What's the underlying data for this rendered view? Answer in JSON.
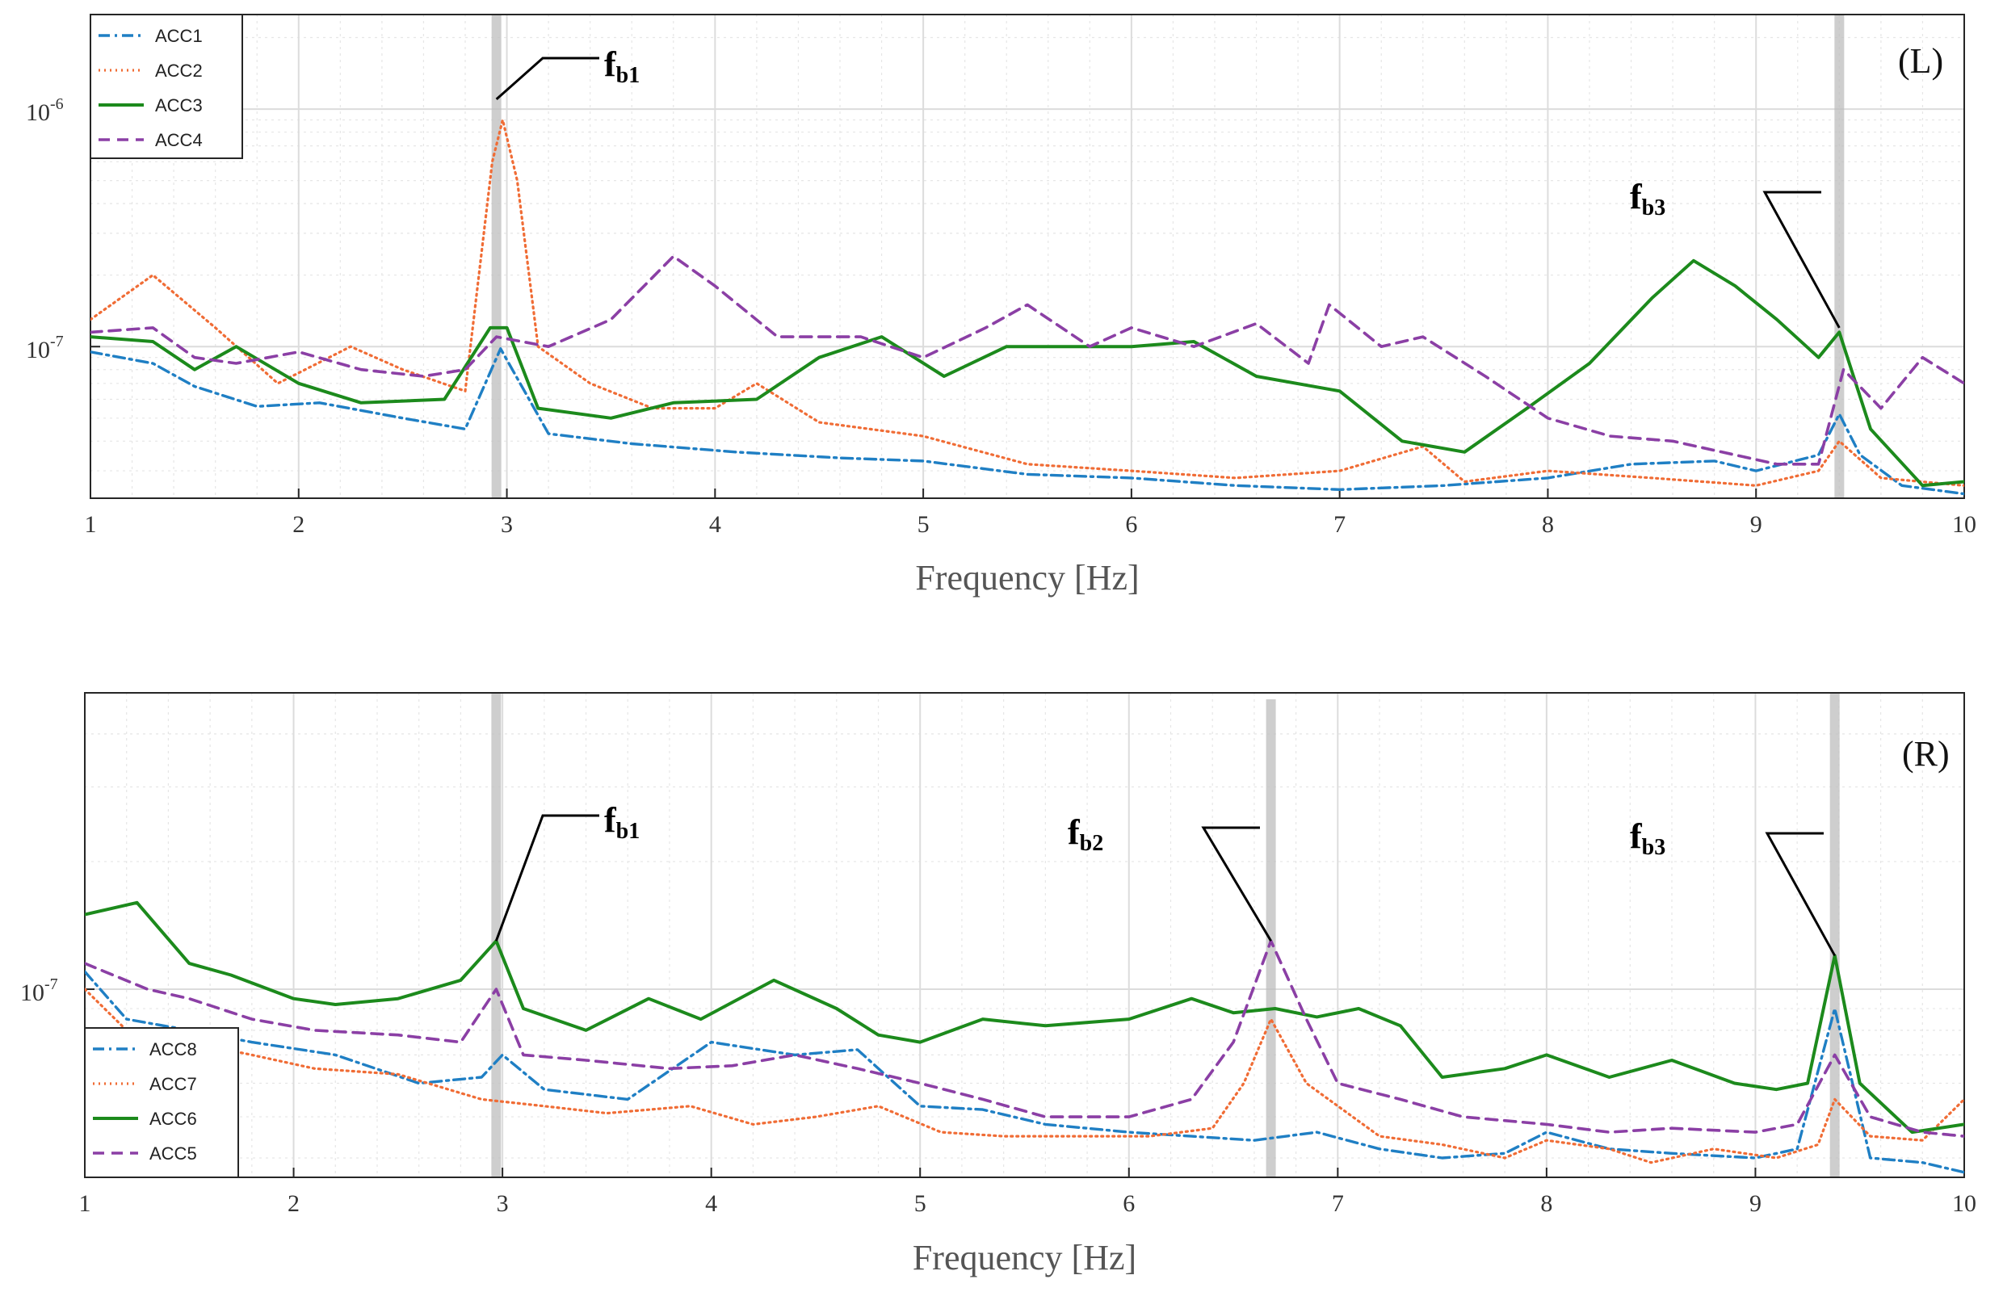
{
  "chart_data": [
    {
      "type": "line",
      "panel_label": "(L)",
      "xlabel": "Frequency [Hz]",
      "ylabel": "",
      "yscale": "log",
      "xlim": [
        1,
        10
      ],
      "ylim": [
        2.3e-08,
        2.5e-06
      ],
      "xticks": [
        "1",
        "2",
        "3",
        "4",
        "5",
        "6",
        "7",
        "8",
        "9",
        "10"
      ],
      "yticks": [
        {
          "base": "10",
          "exp": "-7",
          "value": 1e-07
        },
        {
          "base": "10",
          "exp": "-6",
          "value": 1e-06
        }
      ],
      "grid": true,
      "legend_position": "top-left",
      "highlight_bands": [
        2.95,
        9.4
      ],
      "annotations": [
        {
          "main": "f",
          "sub": "b1",
          "x": 2.95,
          "y": 1.1e-06
        },
        {
          "main": "f",
          "sub": "b3",
          "x": 9.4,
          "y": 1.2e-07
        }
      ],
      "series": [
        {
          "name": "ACC1",
          "color": "#1f7fc4",
          "style": "dashdot",
          "x": [
            1,
            1.3,
            1.5,
            1.8,
            2.1,
            2.5,
            2.8,
            2.97,
            3.2,
            3.6,
            4.1,
            4.6,
            5.0,
            5.5,
            6.0,
            6.5,
            7.0,
            7.5,
            8.0,
            8.4,
            8.8,
            9.0,
            9.3,
            9.4,
            9.5,
            9.7,
            10
          ],
          "values": [
            9.5e-08,
            8.5e-08,
            6.8e-08,
            5.6e-08,
            5.8e-08,
            5e-08,
            4.5e-08,
            9.8e-08,
            4.3e-08,
            3.9e-08,
            3.6e-08,
            3.4e-08,
            3.3e-08,
            2.9e-08,
            2.8e-08,
            2.6e-08,
            2.5e-08,
            2.6e-08,
            2.8e-08,
            3.2e-08,
            3.3e-08,
            3e-08,
            3.5e-08,
            5.2e-08,
            3.5e-08,
            2.6e-08,
            2.4e-08
          ]
        },
        {
          "name": "ACC2",
          "color": "#f06c35",
          "style": "dotted",
          "x": [
            1,
            1.3,
            1.6,
            1.9,
            2.25,
            2.5,
            2.8,
            2.93,
            2.98,
            3.05,
            3.15,
            3.4,
            3.7,
            4.0,
            4.2,
            4.5,
            5.0,
            5.5,
            6.0,
            6.5,
            7.0,
            7.4,
            7.6,
            8.0,
            8.5,
            9.0,
            9.3,
            9.4,
            9.6,
            10
          ],
          "values": [
            1.3e-07,
            2e-07,
            1.2e-07,
            7e-08,
            1e-07,
            8e-08,
            6.5e-08,
            6e-07,
            9e-07,
            5e-07,
            1e-07,
            7e-08,
            5.5e-08,
            5.5e-08,
            7e-08,
            4.8e-08,
            4.2e-08,
            3.2e-08,
            3e-08,
            2.8e-08,
            3e-08,
            3.8e-08,
            2.7e-08,
            3e-08,
            2.8e-08,
            2.6e-08,
            3e-08,
            4e-08,
            2.8e-08,
            2.6e-08
          ]
        },
        {
          "name": "ACC3",
          "color": "#1c8a1c",
          "style": "solid",
          "x": [
            1,
            1.3,
            1.5,
            1.7,
            2.0,
            2.3,
            2.7,
            2.92,
            3.0,
            3.15,
            3.5,
            3.8,
            4.2,
            4.5,
            4.8,
            5.1,
            5.4,
            5.7,
            6.0,
            6.3,
            6.6,
            7.0,
            7.3,
            7.6,
            7.9,
            8.2,
            8.5,
            8.7,
            8.9,
            9.1,
            9.3,
            9.4,
            9.55,
            9.8,
            10
          ],
          "values": [
            1.1e-07,
            1.05e-07,
            8e-08,
            1e-07,
            7e-08,
            5.8e-08,
            6e-08,
            1.2e-07,
            1.2e-07,
            5.5e-08,
            5e-08,
            5.8e-08,
            6e-08,
            9e-08,
            1.1e-07,
            7.5e-08,
            1e-07,
            1e-07,
            1e-07,
            1.05e-07,
            7.5e-08,
            6.5e-08,
            4e-08,
            3.6e-08,
            5.5e-08,
            8.5e-08,
            1.6e-07,
            2.3e-07,
            1.8e-07,
            1.3e-07,
            9e-08,
            1.15e-07,
            4.5e-08,
            2.6e-08,
            2.7e-08
          ]
        },
        {
          "name": "ACC4",
          "color": "#8b3fa5",
          "style": "dashed",
          "x": [
            1,
            1.3,
            1.5,
            1.7,
            2.0,
            2.3,
            2.6,
            2.8,
            2.95,
            3.2,
            3.5,
            3.8,
            4.0,
            4.3,
            4.7,
            5.0,
            5.3,
            5.5,
            5.8,
            6.0,
            6.3,
            6.6,
            6.85,
            6.95,
            7.2,
            7.4,
            7.7,
            8.0,
            8.3,
            8.6,
            8.9,
            9.1,
            9.3,
            9.42,
            9.6,
            9.8,
            10
          ],
          "values": [
            1.15e-07,
            1.2e-07,
            9e-08,
            8.5e-08,
            9.5e-08,
            8e-08,
            7.5e-08,
            8e-08,
            1.1e-07,
            1e-07,
            1.3e-07,
            2.4e-07,
            1.8e-07,
            1.1e-07,
            1.1e-07,
            9e-08,
            1.2e-07,
            1.5e-07,
            1e-07,
            1.2e-07,
            1e-07,
            1.25e-07,
            8.5e-08,
            1.5e-07,
            1e-07,
            1.1e-07,
            7.5e-08,
            5e-08,
            4.2e-08,
            4e-08,
            3.5e-08,
            3.2e-08,
            3.2e-08,
            8e-08,
            5.5e-08,
            9e-08,
            7e-08
          ]
        }
      ]
    },
    {
      "type": "line",
      "panel_label": "(R)",
      "xlabel": "Frequency [Hz]",
      "ylabel": "",
      "yscale": "log",
      "xlim": [
        1,
        10
      ],
      "ylim": [
        3.6e-08,
        5e-07
      ],
      "xticks": [
        "1",
        "2",
        "3",
        "4",
        "5",
        "6",
        "7",
        "8",
        "9",
        "10"
      ],
      "yticks": [
        {
          "base": "10",
          "exp": "-7",
          "value": 1e-07
        }
      ],
      "grid": true,
      "legend_position": "bottom-left",
      "highlight_bands": [
        2.97,
        6.68,
        9.38
      ],
      "annotations": [
        {
          "main": "f",
          "sub": "b1",
          "x": 2.97,
          "y": 1.3e-07
        },
        {
          "main": "f",
          "sub": "b2",
          "x": 6.68,
          "y": 1.3e-07
        },
        {
          "main": "f",
          "sub": "b3",
          "x": 9.38,
          "y": 1.2e-07
        }
      ],
      "series": [
        {
          "name": "ACC8",
          "color": "#1f7fc4",
          "style": "dashdot",
          "x": [
            1,
            1.2,
            1.5,
            1.8,
            2.2,
            2.6,
            2.9,
            3.0,
            3.2,
            3.6,
            4.0,
            4.4,
            4.7,
            5.0,
            5.3,
            5.6,
            6.0,
            6.3,
            6.6,
            6.9,
            7.2,
            7.5,
            7.8,
            8.0,
            8.3,
            8.6,
            9.0,
            9.2,
            9.38,
            9.55,
            9.8,
            10
          ],
          "values": [
            1.1e-07,
            8.5e-08,
            8e-08,
            7.5e-08,
            7e-08,
            6e-08,
            6.2e-08,
            7e-08,
            5.8e-08,
            5.5e-08,
            7.5e-08,
            7e-08,
            7.2e-08,
            5.3e-08,
            5.2e-08,
            4.8e-08,
            4.6e-08,
            4.5e-08,
            4.4e-08,
            4.6e-08,
            4.2e-08,
            4e-08,
            4.1e-08,
            4.6e-08,
            4.2e-08,
            4.1e-08,
            4e-08,
            4.2e-08,
            9e-08,
            4e-08,
            3.9e-08,
            3.7e-08
          ]
        },
        {
          "name": "ACC7",
          "color": "#f06c35",
          "style": "dotted",
          "x": [
            1,
            1.2,
            1.5,
            1.8,
            2.1,
            2.5,
            2.9,
            3.2,
            3.5,
            3.9,
            4.2,
            4.5,
            4.8,
            5.1,
            5.4,
            5.8,
            6.1,
            6.4,
            6.55,
            6.68,
            6.85,
            7.2,
            7.5,
            7.8,
            8.0,
            8.3,
            8.5,
            8.8,
            9.1,
            9.3,
            9.38,
            9.55,
            9.8,
            10
          ],
          "values": [
            1e-07,
            8e-08,
            7.5e-08,
            7e-08,
            6.5e-08,
            6.3e-08,
            5.5e-08,
            5.3e-08,
            5.1e-08,
            5.3e-08,
            4.8e-08,
            5e-08,
            5.3e-08,
            4.6e-08,
            4.5e-08,
            4.5e-08,
            4.5e-08,
            4.7e-08,
            6e-08,
            8.5e-08,
            6e-08,
            4.5e-08,
            4.3e-08,
            4e-08,
            4.4e-08,
            4.2e-08,
            3.9e-08,
            4.2e-08,
            4e-08,
            4.3e-08,
            5.5e-08,
            4.5e-08,
            4.4e-08,
            5.5e-08
          ]
        },
        {
          "name": "ACC6",
          "color": "#1c8a1c",
          "style": "solid",
          "x": [
            1,
            1.25,
            1.5,
            1.7,
            2.0,
            2.2,
            2.5,
            2.8,
            2.97,
            3.1,
            3.4,
            3.7,
            3.95,
            4.3,
            4.6,
            4.8,
            5.0,
            5.3,
            5.6,
            6.0,
            6.3,
            6.5,
            6.7,
            6.9,
            7.1,
            7.3,
            7.5,
            7.8,
            8.0,
            8.3,
            8.6,
            8.9,
            9.1,
            9.25,
            9.38,
            9.5,
            9.75,
            10
          ],
          "values": [
            1.5e-07,
            1.6e-07,
            1.15e-07,
            1.08e-07,
            9.5e-08,
            9.2e-08,
            9.5e-08,
            1.05e-07,
            1.3e-07,
            9e-08,
            8e-08,
            9.5e-08,
            8.5e-08,
            1.05e-07,
            9e-08,
            7.8e-08,
            7.5e-08,
            8.5e-08,
            8.2e-08,
            8.5e-08,
            9.5e-08,
            8.8e-08,
            9e-08,
            8.6e-08,
            9e-08,
            8.2e-08,
            6.2e-08,
            6.5e-08,
            7e-08,
            6.2e-08,
            6.8e-08,
            6e-08,
            5.8e-08,
            6e-08,
            1.2e-07,
            6e-08,
            4.6e-08,
            4.8e-08
          ]
        },
        {
          "name": "ACC5",
          "color": "#8b3fa5",
          "style": "dashed",
          "x": [
            1,
            1.3,
            1.5,
            1.8,
            2.1,
            2.5,
            2.8,
            2.97,
            3.1,
            3.4,
            3.8,
            4.1,
            4.4,
            4.7,
            5.0,
            5.3,
            5.6,
            6.0,
            6.3,
            6.5,
            6.68,
            6.85,
            7.0,
            7.3,
            7.6,
            8.0,
            8.3,
            8.6,
            9.0,
            9.2,
            9.38,
            9.55,
            9.8,
            10
          ],
          "values": [
            1.15e-07,
            1e-07,
            9.5e-08,
            8.5e-08,
            8e-08,
            7.8e-08,
            7.5e-08,
            1e-07,
            7e-08,
            6.8e-08,
            6.5e-08,
            6.6e-08,
            7e-08,
            6.5e-08,
            6e-08,
            5.5e-08,
            5e-08,
            5e-08,
            5.5e-08,
            7.5e-08,
            1.3e-07,
            8.5e-08,
            6e-08,
            5.5e-08,
            5e-08,
            4.8e-08,
            4.6e-08,
            4.7e-08,
            4.6e-08,
            4.8e-08,
            7e-08,
            5e-08,
            4.6e-08,
            4.5e-08
          ]
        }
      ]
    }
  ]
}
